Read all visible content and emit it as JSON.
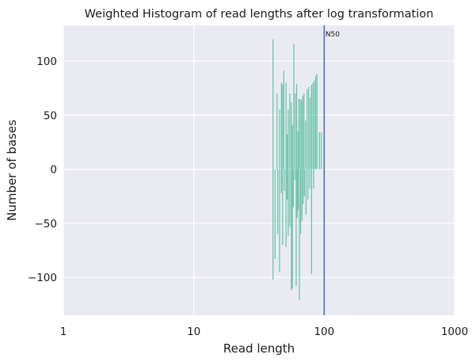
{
  "chart_data": {
    "type": "bar",
    "title": "Weighted Histogram of read lengths after log transformation",
    "xlabel": "Read length",
    "ylabel": "Number of bases",
    "x_scale": "log",
    "xlim": [
      1,
      1000
    ],
    "ylim": [
      -135,
      133
    ],
    "x_ticks": [
      {
        "value": 1,
        "label": "1"
      },
      {
        "value": 10,
        "label": "10"
      },
      {
        "value": 100,
        "label": "100"
      },
      {
        "value": 1000,
        "label": "1000"
      }
    ],
    "y_ticks": [
      {
        "value": -100,
        "label": "−100"
      },
      {
        "value": -50,
        "label": "−50"
      },
      {
        "value": 0,
        "label": "0"
      },
      {
        "value": 50,
        "label": "50"
      },
      {
        "value": 100,
        "label": "100"
      }
    ],
    "grid": true,
    "background_color": "#eaeaf2",
    "grid_color": "#ffffff",
    "bar_color": "#66c2a5",
    "reference_line": {
      "x": 100,
      "label": "N50",
      "color": "#4c72b0"
    },
    "series": [
      {
        "values_positive": [
          [
            40.5,
            120
          ],
          [
            43.5,
            70
          ],
          [
            45.5,
            55
          ],
          [
            47,
            80
          ],
          [
            48,
            78
          ],
          [
            49,
            91
          ],
          [
            51,
            80
          ],
          [
            52,
            32
          ],
          [
            53,
            55
          ],
          [
            54.5,
            70
          ],
          [
            56,
            62
          ],
          [
            57,
            41
          ],
          [
            58.5,
            116
          ],
          [
            60,
            70
          ],
          [
            61.5,
            79
          ],
          [
            63,
            35
          ],
          [
            64,
            65
          ],
          [
            65.5,
            65
          ],
          [
            67,
            64
          ],
          [
            68.5,
            68
          ],
          [
            70,
            70
          ],
          [
            72,
            45
          ],
          [
            74,
            74
          ],
          [
            76,
            76
          ],
          [
            78,
            66
          ],
          [
            80,
            78
          ],
          [
            82,
            80
          ],
          [
            84,
            82
          ],
          [
            86,
            86
          ],
          [
            88,
            88
          ],
          [
            92,
            34
          ],
          [
            95,
            34
          ]
        ],
        "values_negative": [
          [
            40.5,
            -102
          ],
          [
            42,
            -83
          ],
          [
            44,
            -60
          ],
          [
            45.5,
            -95
          ],
          [
            47,
            -22
          ],
          [
            48,
            -70
          ],
          [
            49.5,
            -20
          ],
          [
            51,
            -72
          ],
          [
            52,
            -28
          ],
          [
            53,
            -62
          ],
          [
            54.5,
            -53
          ],
          [
            56,
            -112
          ],
          [
            57,
            -110
          ],
          [
            58,
            -35
          ],
          [
            59.5,
            -10
          ],
          [
            61,
            -108
          ],
          [
            62,
            -45
          ],
          [
            63,
            -38
          ],
          [
            64.5,
            -121
          ],
          [
            66,
            -60
          ],
          [
            67.5,
            -48
          ],
          [
            69,
            -32
          ],
          [
            70.5,
            -25
          ],
          [
            72.5,
            -42
          ],
          [
            75,
            -28
          ],
          [
            77.5,
            -18
          ],
          [
            80,
            -97
          ],
          [
            83,
            -18
          ]
        ]
      }
    ]
  }
}
